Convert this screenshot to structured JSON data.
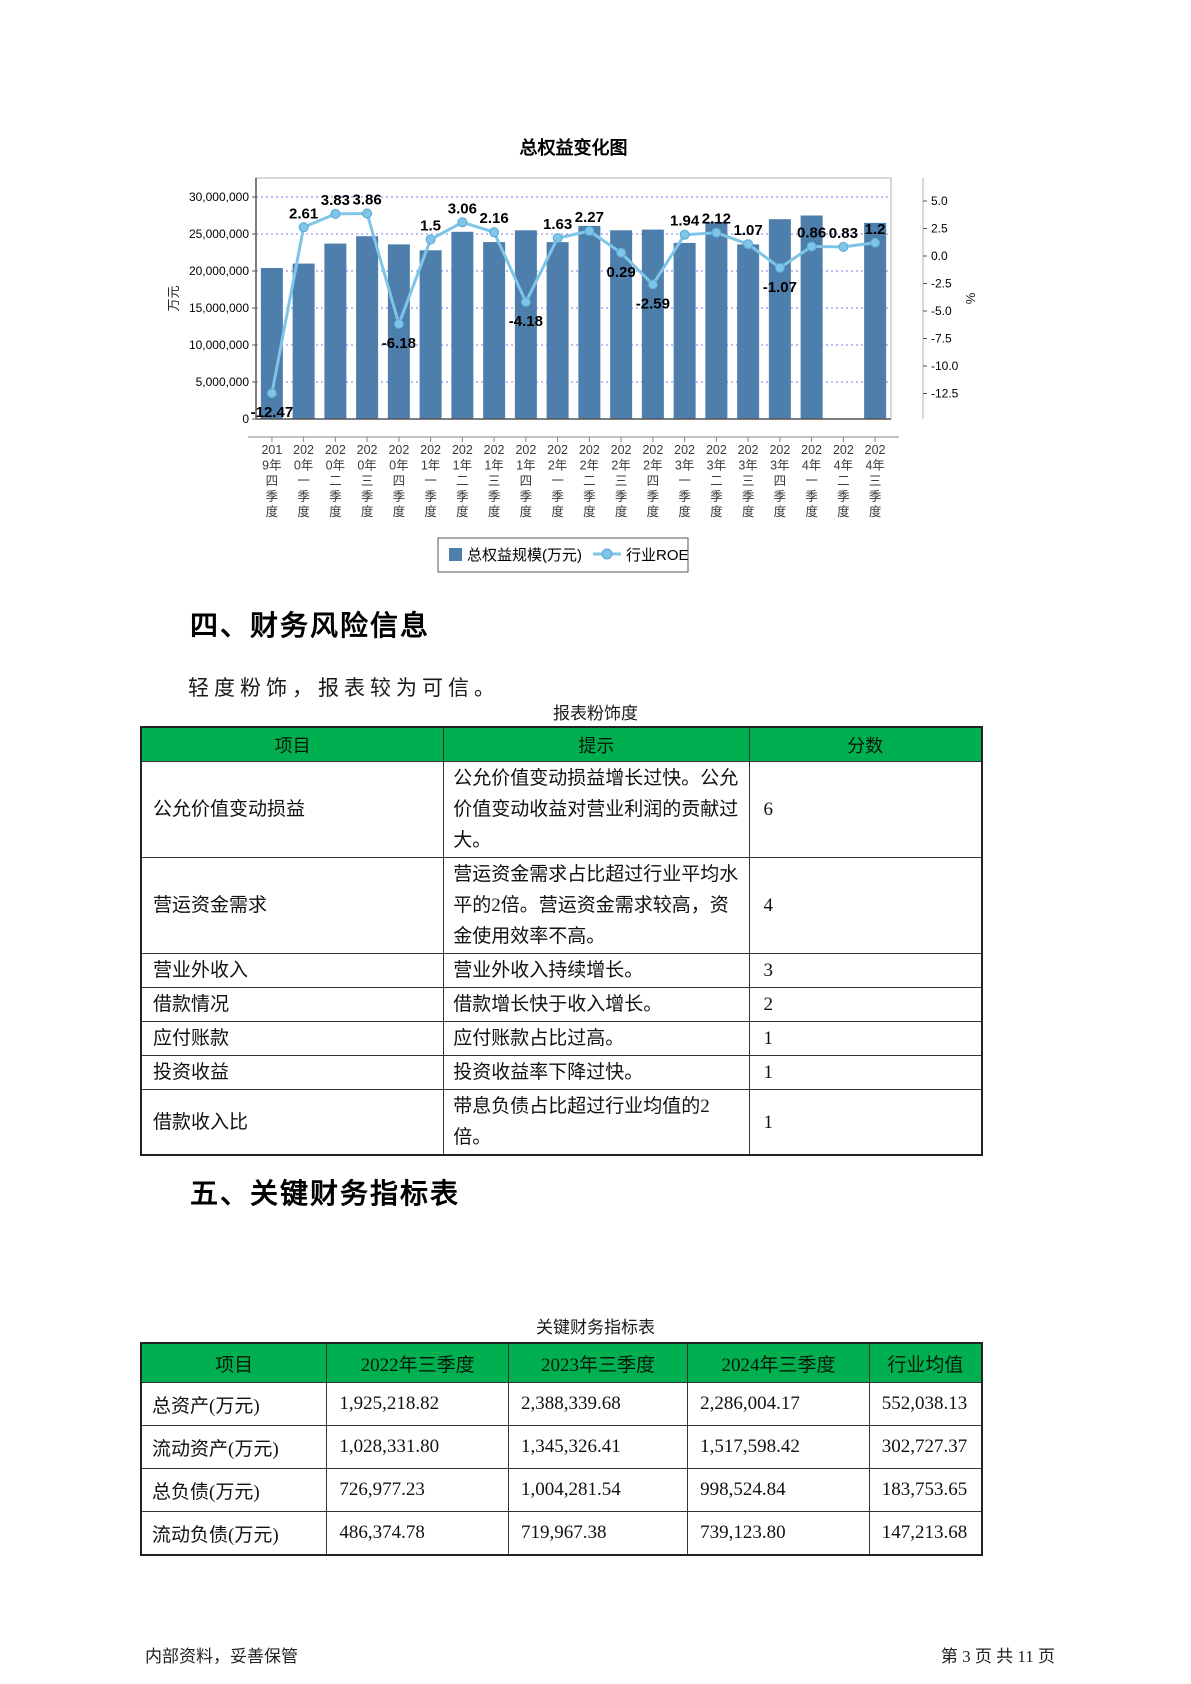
{
  "colors": {
    "bar": "#4d7eac",
    "line": "#7ec5e8",
    "marker_edge": "#5aa7d4",
    "grid": "#7a7af0",
    "axis": "#555555",
    "frame": "#b0b0b0",
    "header_green": "#00b050"
  },
  "chart_data": {
    "type": "bar",
    "title": "总权益变化图",
    "categories": [
      "2019年四季度",
      "2020年一季度",
      "2020年二季度",
      "2020年三季度",
      "2020年四季度",
      "2021年一季度",
      "2021年二季度",
      "2021年三季度",
      "2021年四季度",
      "2022年一季度",
      "2022年二季度",
      "2022年三季度",
      "2022年四季度",
      "2023年一季度",
      "2023年二季度",
      "2023年三季度",
      "2023年四季度",
      "2024年一季度",
      "2024年二季度",
      "2024年三季度"
    ],
    "series": [
      {
        "name": "总权益规模(万元)",
        "type": "bar",
        "axis": "left",
        "values": [
          20400000,
          21000000,
          23700000,
          24700000,
          23600000,
          22800000,
          25300000,
          23900000,
          25500000,
          23900000,
          26100000,
          25500000,
          25600000,
          23800000,
          26600000,
          23600000,
          27000000,
          27500000,
          null,
          26500000
        ]
      },
      {
        "name": "行业ROE",
        "type": "line",
        "axis": "right",
        "values": [
          -12.47,
          2.61,
          3.83,
          3.86,
          -6.18,
          1.5,
          3.06,
          2.16,
          -4.18,
          1.63,
          2.27,
          0.29,
          -2.59,
          1.94,
          2.12,
          1.07,
          -1.07,
          0.86,
          0.83,
          1.2
        ]
      }
    ],
    "left_axis": {
      "title": "万元",
      "min": 0,
      "max": 30000000,
      "tick_step": 5000000,
      "tick_labels": [
        "0",
        "5,000,000",
        "10,000,000",
        "15,000,000",
        "20,000,000",
        "25,000,000",
        "30,000,000"
      ]
    },
    "right_axis": {
      "title": "%",
      "ticks": [
        5.0,
        2.5,
        0.0,
        -2.5,
        -5.0,
        -7.5,
        -10.0,
        -12.5
      ]
    },
    "grid": "horizontal dotted",
    "legend_position": "bottom"
  },
  "sections": {
    "s4_title": "四、财务风险信息",
    "s4_note": "轻度粉饰，报表较为可信。",
    "s5_title": "五、关键财务指标表"
  },
  "table1": {
    "caption": "报表粉饰度",
    "headers": [
      "项目",
      "提示",
      "分数"
    ],
    "rows": [
      [
        "公允价值变动损益",
        "公允价值变动损益增长过快。公允价值变动收益对营业利润的贡献过大。",
        "6"
      ],
      [
        "营运资金需求",
        "营运资金需求占比超过行业平均水平的2倍。营运资金需求较高，资金使用效率不高。",
        "4"
      ],
      [
        "营业外收入",
        "营业外收入持续增长。",
        "3"
      ],
      [
        "借款情况",
        "借款增长快于收入增长。",
        "2"
      ],
      [
        "应付账款",
        "应付账款占比过高。",
        "1"
      ],
      [
        "投资收益",
        "投资收益率下降过快。",
        "1"
      ],
      [
        "借款收入比",
        "带息负债占比超过行业均值的2倍。",
        "1"
      ]
    ]
  },
  "table2": {
    "caption": "关键财务指标表",
    "headers": [
      "项目",
      "2022年三季度",
      "2023年三季度",
      "2024年三季度",
      "行业均值"
    ],
    "rows": [
      [
        "总资产(万元)",
        "1,925,218.82",
        "2,388,339.68",
        "2,286,004.17",
        "552,038.13"
      ],
      [
        "流动资产(万元)",
        "1,028,331.80",
        "1,345,326.41",
        "1,517,598.42",
        "302,727.37"
      ],
      [
        "总负债(万元)",
        "726,977.23",
        "1,004,281.54",
        "998,524.84",
        "183,753.65"
      ],
      [
        "流动负债(万元)",
        "486,374.78",
        "719,967.38",
        "739,123.80",
        "147,213.68"
      ]
    ]
  },
  "page": {
    "footer_left": "内部资料，妥善保管",
    "footer_right": "第 3 页  共 11 页"
  }
}
